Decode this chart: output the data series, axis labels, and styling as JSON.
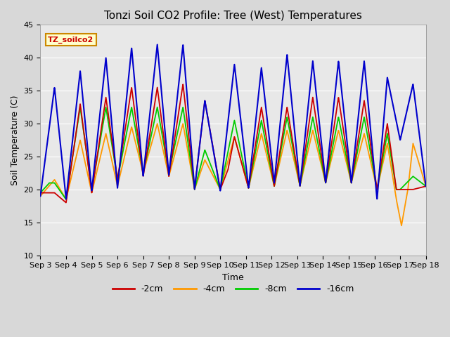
{
  "title": "Tonzi Soil CO2 Profile: Tree (West) Temperatures",
  "xlabel": "Time",
  "ylabel": "Soil Temperature (C)",
  "ylim": [
    10,
    45
  ],
  "xlim": [
    0,
    15
  ],
  "yticks": [
    10,
    15,
    20,
    25,
    30,
    35,
    40,
    45
  ],
  "xtick_labels": [
    "Sep 3",
    "Sep 4",
    "Sep 5",
    "Sep 6",
    "Sep 7",
    "Sep 8",
    "Sep 9",
    "Sep 10",
    "Sep 11",
    "Sep 12",
    "Sep 13",
    "Sep 14",
    "Sep 15",
    "Sep 16",
    "Sep 17",
    "Sep 18"
  ],
  "legend_label": "TZ_soilco2",
  "series_labels": [
    "-2cm",
    "-4cm",
    "-8cm",
    "-16cm"
  ],
  "series_colors": [
    "#cc0000",
    "#ff9900",
    "#00cc00",
    "#0000cc"
  ],
  "plot_bg_color": "#e8e8e8",
  "fig_bg_color": "#d8d8d8",
  "title_fontsize": 11,
  "axis_label_fontsize": 9,
  "tick_fontsize": 8,
  "legend_box_facecolor": "#ffffcc",
  "legend_box_edgecolor": "#cc8800",
  "legend_text_color": "#cc0000",
  "peak_times": [
    0.5,
    1.5,
    2.5,
    3.5,
    4.5,
    5.5,
    6.5,
    7.0,
    8.0,
    9.0,
    10.0,
    11.0,
    12.0,
    13.0,
    13.85
  ],
  "trough_times": [
    0.0,
    1.0,
    2.0,
    3.0,
    4.0,
    5.0,
    6.0,
    7.5,
    8.5,
    9.5,
    10.5,
    11.5,
    12.5,
    13.5,
    14.5
  ],
  "blue_peaks": [
    35.5,
    38.0,
    40.0,
    41.5,
    42.0,
    42.0,
    33.5,
    39.0,
    38.5,
    40.5,
    39.5,
    39.5,
    39.5,
    37.0,
    36.0
  ],
  "blue_troughs": [
    19.0,
    18.5,
    19.8,
    20.2,
    22.0,
    22.2,
    20.0,
    19.8,
    20.2,
    21.0,
    20.5,
    21.0,
    21.0,
    18.5,
    20.5
  ],
  "red_peaks": [
    19.5,
    33.0,
    34.0,
    35.5,
    35.5,
    36.0,
    33.5,
    28.0,
    32.5,
    32.5,
    34.0,
    34.0,
    33.5,
    30.0,
    20.0
  ],
  "red_troughs": [
    18.0,
    18.5,
    19.5,
    21.5,
    22.0,
    22.0,
    20.0,
    20.0,
    20.2,
    20.5,
    20.5,
    21.0,
    20.5,
    20.0,
    20.5
  ],
  "orange_peaks": [
    21.5,
    27.5,
    28.5,
    29.5,
    30.0,
    30.0,
    27.5,
    28.0,
    28.5,
    29.0,
    29.0,
    29.0,
    28.5,
    27.0,
    14.5
  ],
  "orange_troughs": [
    19.0,
    18.5,
    19.5,
    20.5,
    22.5,
    22.0,
    20.0,
    20.0,
    20.2,
    20.5,
    20.5,
    21.0,
    20.5,
    20.0,
    14.5
  ],
  "green_peaks": [
    21.0,
    32.5,
    32.5,
    32.5,
    32.5,
    32.5,
    26.0,
    30.5,
    30.5,
    31.0,
    31.0,
    31.0,
    31.0,
    28.5,
    20.0
  ],
  "green_troughs": [
    19.5,
    18.5,
    20.0,
    21.5,
    22.5,
    22.5,
    20.0,
    20.0,
    20.2,
    20.5,
    20.5,
    21.0,
    20.5,
    20.0,
    20.5
  ]
}
